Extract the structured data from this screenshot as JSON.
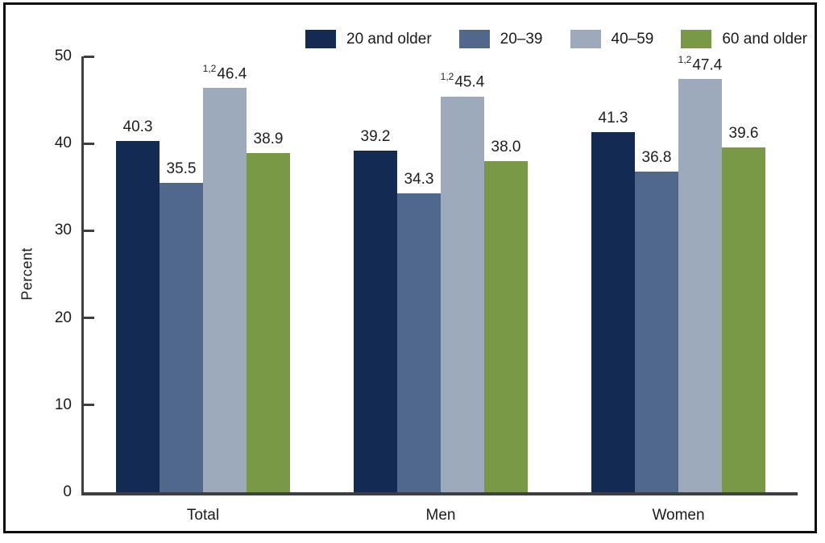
{
  "chart_data": {
    "type": "bar",
    "title": "",
    "xlabel": "",
    "ylabel": "Percent",
    "ylim": [
      0,
      50
    ],
    "yticks": [
      0,
      10,
      20,
      30,
      40,
      50
    ],
    "grid": false,
    "legend_position": "top-right",
    "categories": [
      "Total",
      "Men",
      "Women"
    ],
    "series": [
      {
        "name": "20 and older",
        "color": "#132B52",
        "values": [
          40.3,
          39.2,
          41.3
        ],
        "value_labels": [
          "40.3",
          "39.2",
          "41.3"
        ],
        "label_prefix": ""
      },
      {
        "name": "20–39",
        "color": "#51688D",
        "values": [
          35.5,
          34.3,
          36.8
        ],
        "value_labels": [
          "35.5",
          "34.3",
          "36.8"
        ],
        "label_prefix": ""
      },
      {
        "name": "40–59",
        "color": "#9DAABC",
        "values": [
          46.4,
          45.4,
          47.4
        ],
        "value_labels": [
          "46.4",
          "45.4",
          "47.4"
        ],
        "label_prefix": "1,2"
      },
      {
        "name": "60 and older",
        "color": "#7A9947",
        "values": [
          38.9,
          38.0,
          39.6
        ],
        "value_labels": [
          "38.9",
          "38.0",
          "39.6"
        ],
        "label_prefix": ""
      }
    ]
  },
  "colors": {
    "axis": "#3f3f3f",
    "text": "#1b1b1b",
    "frame_border": "#0d0d0d",
    "background": "#ffffff"
  }
}
